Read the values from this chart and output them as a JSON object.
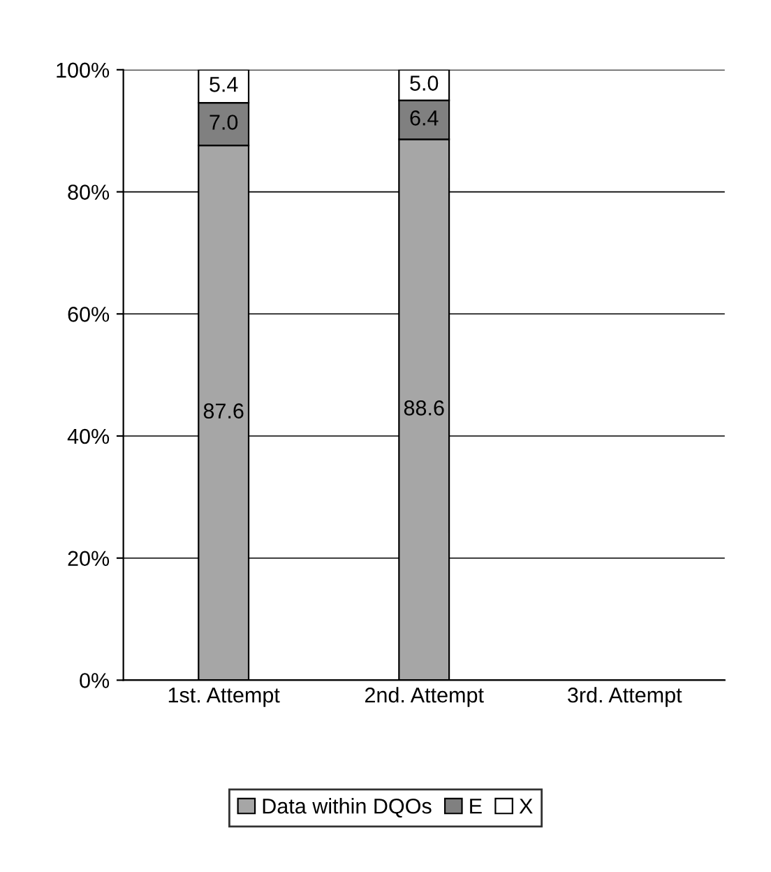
{
  "chart_data": {
    "type": "bar",
    "stacked": true,
    "categories": [
      "1st. Attempt",
      "2nd. Attempt",
      "3rd. Attempt"
    ],
    "series": [
      {
        "name": "Data within DQOs",
        "color": "#a6a6a6",
        "values": [
          87.6,
          88.6,
          null
        ],
        "value_labels": [
          "87.6",
          "88.6",
          null
        ]
      },
      {
        "name": "E",
        "color": "#808080",
        "values": [
          7.0,
          6.4,
          null
        ],
        "value_labels": [
          "7.0",
          "6.4",
          null
        ]
      },
      {
        "name": "X",
        "color": "#ffffff",
        "values": [
          5.4,
          5.0,
          null
        ],
        "value_labels": [
          "5.4",
          "5.0",
          null
        ]
      }
    ],
    "ylim": [
      0,
      100
    ],
    "yticks": [
      {
        "value": 0,
        "label": "0%"
      },
      {
        "value": 20,
        "label": "20%"
      },
      {
        "value": 40,
        "label": "40%"
      },
      {
        "value": 60,
        "label": "60%"
      },
      {
        "value": 80,
        "label": "80%"
      },
      {
        "value": 100,
        "label": "100%"
      }
    ],
    "grid": "y",
    "legend": "bottom"
  }
}
